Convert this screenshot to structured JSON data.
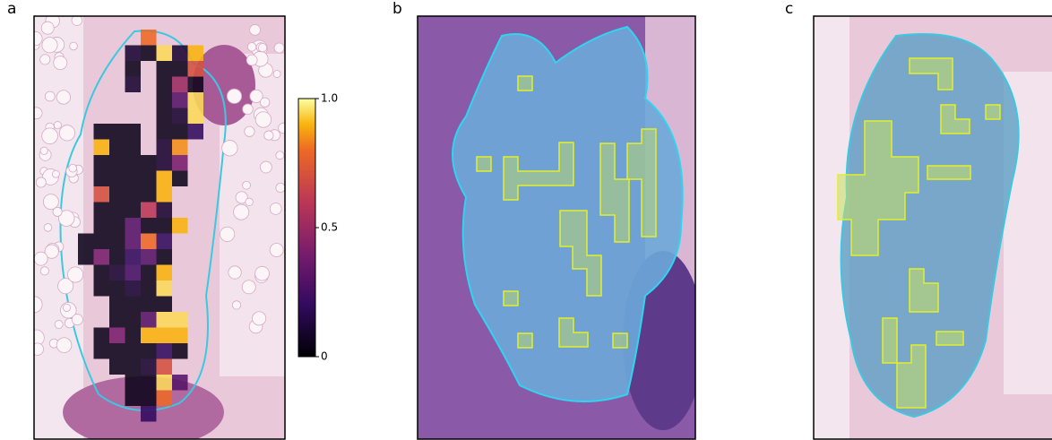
{
  "panels": [
    {
      "label": "a",
      "heatmap": {
        "rows": [
          [
            null,
            null,
            null,
            null,
            0.8,
            null,
            null,
            null
          ],
          [
            null,
            null,
            null,
            0.1,
            0.05,
            0.95,
            0.1,
            0.9
          ],
          [
            null,
            null,
            null,
            0.05,
            null,
            0.05,
            0.05,
            0.7
          ],
          [
            null,
            null,
            null,
            0.1,
            null,
            0.05,
            0.5,
            0.05
          ],
          [
            null,
            null,
            null,
            null,
            null,
            0.05,
            0.3,
            0.95
          ],
          [
            null,
            null,
            null,
            null,
            null,
            0.05,
            0.1,
            0.95
          ],
          [
            null,
            0.05,
            0.05,
            0.05,
            null,
            0.05,
            0.05,
            0.2
          ],
          [
            null,
            0.9,
            0.05,
            0.05,
            null,
            0.1,
            0.85,
            null
          ],
          [
            null,
            0.05,
            0.05,
            0.05,
            0.05,
            0.1,
            0.4,
            null
          ],
          [
            null,
            0.05,
            0.05,
            0.05,
            0.05,
            0.9,
            0.05,
            null
          ],
          [
            null,
            0.7,
            0.05,
            0.05,
            0.05,
            0.9,
            null,
            null
          ],
          [
            null,
            0.05,
            0.05,
            0.05,
            0.6,
            0.1,
            null,
            null
          ],
          [
            null,
            0.05,
            0.05,
            0.3,
            0.05,
            0.05,
            0.9,
            null
          ],
          [
            0.05,
            0.05,
            0.05,
            0.3,
            0.8,
            0.2,
            null,
            null
          ],
          [
            0.05,
            0.4,
            0.05,
            0.2,
            0.3,
            0.05,
            null,
            null
          ],
          [
            null,
            0.05,
            0.1,
            0.25,
            0.05,
            0.9,
            null,
            null
          ],
          [
            null,
            0.05,
            0.05,
            0.1,
            0.05,
            0.95,
            null,
            null
          ],
          [
            null,
            null,
            0.05,
            0.05,
            0.05,
            0.05,
            null,
            null
          ],
          [
            null,
            null,
            0.05,
            0.05,
            0.3,
            0.95,
            0.95,
            null
          ],
          [
            null,
            0.05,
            0.4,
            0.05,
            0.9,
            0.9,
            0.9,
            null
          ],
          [
            null,
            0.05,
            0.05,
            0.05,
            0.05,
            0.2,
            0.05,
            null
          ],
          [
            null,
            null,
            0.05,
            0.05,
            0.1,
            0.7,
            null,
            null
          ],
          [
            null,
            null,
            null,
            0.05,
            0.05,
            0.95,
            0.3,
            null
          ],
          [
            null,
            null,
            null,
            0.05,
            0.05,
            0.8,
            null,
            null
          ],
          [
            null,
            null,
            null,
            null,
            0.2,
            null,
            null,
            null
          ]
        ]
      },
      "colorbar": {
        "lim": [
          0,
          1
        ],
        "ticks": [
          0,
          0.5,
          {
            "value": 1,
            "label": "1.0"
          }
        ]
      }
    },
    {
      "label": "b"
    },
    {
      "label": "c"
    }
  ]
}
